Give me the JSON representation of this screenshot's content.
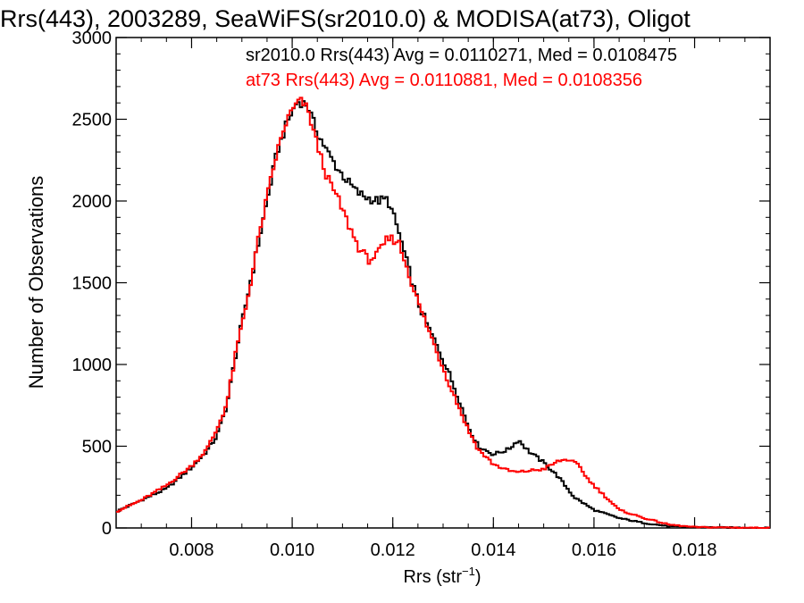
{
  "chart_data": {
    "type": "line",
    "title": "Rrs(443), 2003289, SeaWiFS(sr2010.0) & MODISA(at73), Oligot",
    "xlabel": "Rrs (str",
    "xlabel_sup": "−1",
    "xlabel_close": ")",
    "ylabel": "Number of Observations",
    "xlim": [
      0.0065,
      0.0195
    ],
    "ylim": [
      0,
      3000
    ],
    "xticks": [
      0.008,
      0.01,
      0.012,
      0.014,
      0.016,
      0.018
    ],
    "xtick_labels": [
      "0.008",
      "0.010",
      "0.012",
      "0.014",
      "0.016",
      "0.018"
    ],
    "yticks": [
      0,
      500,
      1000,
      1500,
      2000,
      2500,
      3000
    ],
    "ytick_labels": [
      "0",
      "500",
      "1000",
      "1500",
      "2000",
      "2500",
      "3000"
    ],
    "grid": false,
    "step": true,
    "series": [
      {
        "name": "sr2010.0",
        "legend_text": "sr2010.0 Rrs(443) Avg = 0.0110271, Med = 0.0108475",
        "color": "#000000",
        "points": [
          [
            0.0065,
            100
          ],
          [
            0.007,
            170
          ],
          [
            0.0075,
            240
          ],
          [
            0.008,
            370
          ],
          [
            0.0083,
            470
          ],
          [
            0.0085,
            560
          ],
          [
            0.0087,
            750
          ],
          [
            0.0089,
            1100
          ],
          [
            0.0091,
            1400
          ],
          [
            0.0093,
            1700
          ],
          [
            0.0095,
            2000
          ],
          [
            0.0097,
            2300
          ],
          [
            0.0099,
            2480
          ],
          [
            0.0101,
            2610
          ],
          [
            0.0102,
            2600
          ],
          [
            0.0103,
            2590
          ],
          [
            0.0104,
            2500
          ],
          [
            0.0105,
            2420
          ],
          [
            0.0107,
            2300
          ],
          [
            0.0109,
            2200
          ],
          [
            0.0111,
            2120
          ],
          [
            0.0113,
            2050
          ],
          [
            0.0115,
            2020
          ],
          [
            0.0117,
            2000
          ],
          [
            0.0119,
            2010
          ],
          [
            0.0121,
            1830
          ],
          [
            0.0123,
            1600
          ],
          [
            0.0125,
            1380
          ],
          [
            0.0127,
            1230
          ],
          [
            0.0129,
            1100
          ],
          [
            0.0131,
            960
          ],
          [
            0.0133,
            800
          ],
          [
            0.0135,
            620
          ],
          [
            0.0137,
            500
          ],
          [
            0.014,
            450
          ],
          [
            0.0143,
            480
          ],
          [
            0.0145,
            540
          ],
          [
            0.0147,
            470
          ],
          [
            0.015,
            400
          ],
          [
            0.0153,
            310
          ],
          [
            0.0156,
            190
          ],
          [
            0.016,
            110
          ],
          [
            0.0165,
            60
          ],
          [
            0.017,
            30
          ],
          [
            0.0175,
            10
          ],
          [
            0.018,
            5
          ],
          [
            0.0195,
            0
          ]
        ]
      },
      {
        "name": "at73",
        "legend_text": "at73 Rrs(443) Avg = 0.0110881, Med = 0.0108356",
        "color": "#ff0000",
        "points": [
          [
            0.0065,
            100
          ],
          [
            0.007,
            170
          ],
          [
            0.0075,
            260
          ],
          [
            0.008,
            380
          ],
          [
            0.0083,
            480
          ],
          [
            0.0085,
            600
          ],
          [
            0.0087,
            760
          ],
          [
            0.0089,
            1100
          ],
          [
            0.0091,
            1380
          ],
          [
            0.0093,
            1720
          ],
          [
            0.0095,
            2020
          ],
          [
            0.0097,
            2300
          ],
          [
            0.0099,
            2500
          ],
          [
            0.0101,
            2600
          ],
          [
            0.0102,
            2610
          ],
          [
            0.0103,
            2560
          ],
          [
            0.0104,
            2460
          ],
          [
            0.0105,
            2340
          ],
          [
            0.0107,
            2140
          ],
          [
            0.0109,
            2020
          ],
          [
            0.0111,
            1870
          ],
          [
            0.0113,
            1730
          ],
          [
            0.0115,
            1640
          ],
          [
            0.0117,
            1670
          ],
          [
            0.0119,
            1770
          ],
          [
            0.0121,
            1760
          ],
          [
            0.0123,
            1580
          ],
          [
            0.0125,
            1380
          ],
          [
            0.0127,
            1220
          ],
          [
            0.0129,
            1060
          ],
          [
            0.0131,
            900
          ],
          [
            0.0133,
            750
          ],
          [
            0.0135,
            600
          ],
          [
            0.0137,
            480
          ],
          [
            0.014,
            390
          ],
          [
            0.0143,
            350
          ],
          [
            0.0145,
            340
          ],
          [
            0.0147,
            350
          ],
          [
            0.015,
            360
          ],
          [
            0.0153,
            410
          ],
          [
            0.0155,
            420
          ],
          [
            0.0157,
            380
          ],
          [
            0.0159,
            290
          ],
          [
            0.0161,
            230
          ],
          [
            0.0163,
            170
          ],
          [
            0.0165,
            110
          ],
          [
            0.017,
            60
          ],
          [
            0.0175,
            20
          ],
          [
            0.018,
            5
          ],
          [
            0.0195,
            0
          ]
        ]
      }
    ]
  }
}
